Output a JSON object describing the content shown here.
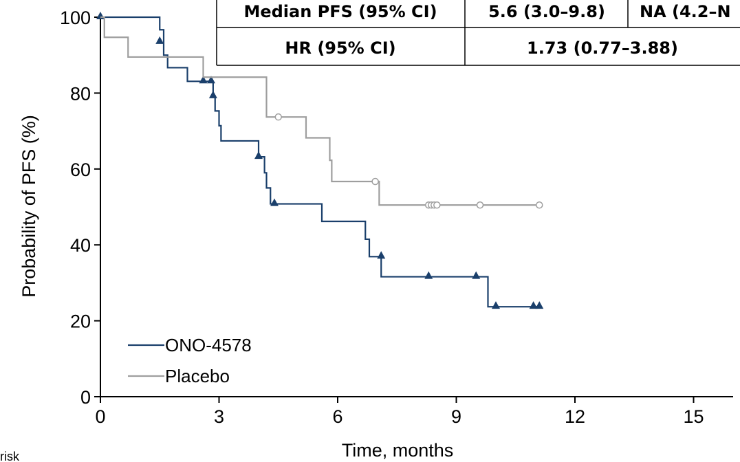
{
  "chart_data": {
    "type": "line",
    "subtype": "kaplan-meier",
    "title": "",
    "xlabel": "Time, months",
    "ylabel": "Probability of PFS (%)",
    "xlim": [
      0,
      16
    ],
    "ylim": [
      0,
      100
    ],
    "x_ticks": [
      "0",
      "3",
      "6",
      "9",
      "12",
      "15"
    ],
    "y_ticks": [
      "0",
      "20",
      "40",
      "60",
      "80",
      "100"
    ],
    "legend_position": "bottom-left",
    "cropped_text": "risk",
    "table": {
      "rows": [
        {
          "label": "Median PFS (95% CI)",
          "cells": [
            "5.6 (3.0–9.8)",
            "NA (4.2–N"
          ]
        },
        {
          "label": "HR (95% CI)",
          "cells": [
            "1.73 (0.77–3.88)"
          ]
        }
      ]
    },
    "series": [
      {
        "name": "ONO-4578",
        "color": "#1a3f6b",
        "steps": [
          [
            0,
            100
          ],
          [
            1.5,
            96.7
          ],
          [
            1.6,
            90
          ],
          [
            1.7,
            86.7
          ],
          [
            2.2,
            83.1
          ],
          [
            2.85,
            79.2
          ],
          [
            2.9,
            75.3
          ],
          [
            3.0,
            71.4
          ],
          [
            3.05,
            67.4
          ],
          [
            4.0,
            63.2
          ],
          [
            4.15,
            59
          ],
          [
            4.2,
            55
          ],
          [
            4.3,
            50.8
          ],
          [
            5.6,
            46.2
          ],
          [
            6.7,
            41.5
          ],
          [
            6.8,
            36.9
          ],
          [
            7.1,
            31.6
          ],
          [
            9.8,
            23.7
          ],
          [
            11.1,
            23.7
          ]
        ],
        "censored": [
          [
            0,
            100
          ],
          [
            1.5,
            93.5
          ],
          [
            2.6,
            83.1
          ],
          [
            2.8,
            83.1
          ],
          [
            2.85,
            79.2
          ],
          [
            4.0,
            63.2
          ],
          [
            4.4,
            50.8
          ],
          [
            7.1,
            36.9
          ],
          [
            8.3,
            31.6
          ],
          [
            9.5,
            31.6
          ],
          [
            10.0,
            23.7
          ],
          [
            10.95,
            23.7
          ],
          [
            11.1,
            23.7
          ]
        ]
      },
      {
        "name": "Placebo",
        "color": "#9e9e9e",
        "steps": [
          [
            0,
            100
          ],
          [
            0.1,
            94.7
          ],
          [
            0.7,
            89.5
          ],
          [
            2.6,
            84.2
          ],
          [
            4.2,
            73.7
          ],
          [
            5.2,
            68.2
          ],
          [
            5.8,
            62.3
          ],
          [
            5.85,
            56.7
          ],
          [
            7.05,
            50.5
          ],
          [
            11.1,
            50.5
          ]
        ],
        "censored": [
          [
            4.5,
            73.7
          ],
          [
            6.95,
            56.7
          ],
          [
            8.3,
            50.5
          ],
          [
            8.37,
            50.5
          ],
          [
            8.44,
            50.5
          ],
          [
            8.51,
            50.5
          ],
          [
            9.6,
            50.5
          ],
          [
            11.1,
            50.5
          ]
        ]
      }
    ]
  }
}
